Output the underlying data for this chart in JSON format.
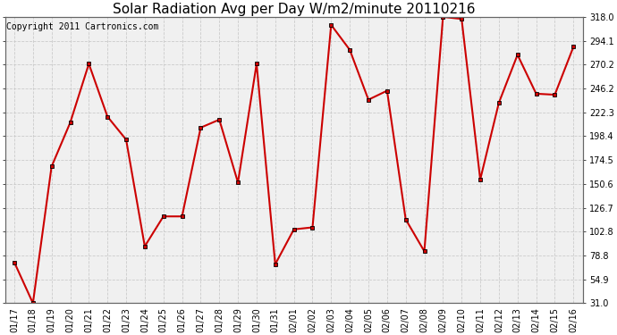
{
  "title": "Solar Radiation Avg per Day W/m2/minute 20110216",
  "copyright": "Copyright 2011 Cartronics.com",
  "labels": [
    "01/17",
    "01/18",
    "01/19",
    "01/20",
    "01/21",
    "01/22",
    "01/23",
    "01/24",
    "01/25",
    "01/26",
    "01/27",
    "01/28",
    "01/29",
    "01/30",
    "01/31",
    "02/01",
    "02/02",
    "02/03",
    "02/04",
    "02/05",
    "02/06",
    "02/07",
    "02/08",
    "02/09",
    "02/10",
    "02/11",
    "02/12",
    "02/13",
    "02/14",
    "02/15",
    "02/16"
  ],
  "values": [
    72,
    31,
    168,
    212,
    271,
    218,
    195,
    88,
    118,
    118,
    207,
    215,
    152,
    271,
    70,
    105,
    107,
    310,
    285,
    235,
    244,
    115,
    83,
    318,
    316,
    155,
    232,
    280,
    241,
    240,
    288
  ],
  "ytick_labels": [
    "31.0",
    "54.9",
    "78.8",
    "102.8",
    "126.7",
    "150.6",
    "174.5",
    "198.4",
    "222.3",
    "246.2",
    "270.2",
    "294.1",
    "318.0"
  ],
  "ytick_values": [
    31.0,
    54.9,
    78.8,
    102.8,
    126.7,
    150.6,
    174.5,
    198.4,
    222.3,
    246.2,
    270.2,
    294.1,
    318.0
  ],
  "line_color": "#cc0000",
  "marker_edge_color": "#000000",
  "bg_color": "#ffffff",
  "plot_bg_color": "#f0f0f0",
  "grid_color": "#c8c8c8",
  "title_fontsize": 11,
  "tick_fontsize": 7,
  "copyright_fontsize": 7
}
